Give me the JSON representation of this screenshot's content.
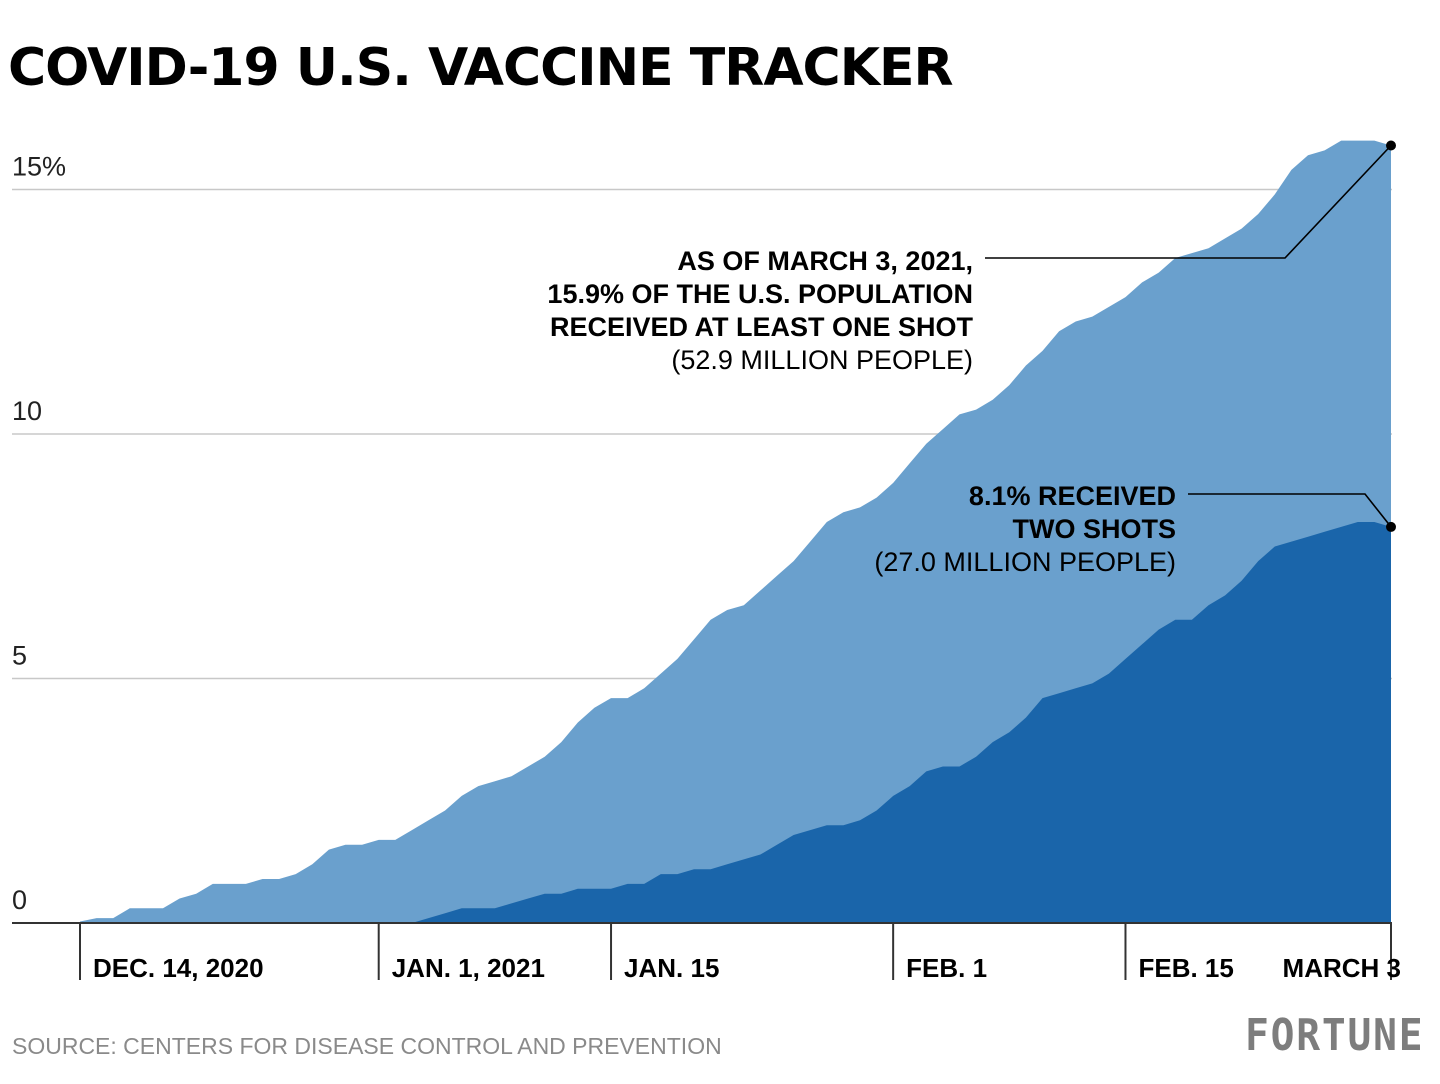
{
  "title": "COVID-19 U.S. VACCINE TRACKER",
  "source": "SOURCE: CENTERS FOR DISEASE CONTROL AND PREVENTION",
  "brand": "FORTUNE",
  "colors": {
    "at_least_one": "#6aa0cd",
    "two_shots": "#1a65aa",
    "grid": "#c8c8c8",
    "axis": "#333333"
  },
  "chart_data": {
    "type": "area",
    "title": "COVID-19 U.S. VACCINE TRACKER",
    "ylabel": "",
    "xlabel": "",
    "ylim": [
      0,
      16
    ],
    "xlim": [
      "2020-12-14",
      "2021-03-03"
    ],
    "y_ticks": [
      {
        "value": 0,
        "label": "0"
      },
      {
        "value": 5,
        "label": "5"
      },
      {
        "value": 10,
        "label": "10"
      },
      {
        "value": 15,
        "label": "15%"
      }
    ],
    "x_ticks": [
      {
        "date": "2020-12-14",
        "label": "DEC. 14, 2020"
      },
      {
        "date": "2021-01-01",
        "label": "JAN. 1, 2021"
      },
      {
        "date": "2021-01-15",
        "label": "JAN. 15"
      },
      {
        "date": "2021-02-01",
        "label": "FEB. 1"
      },
      {
        "date": "2021-02-15",
        "label": "FEB. 15"
      },
      {
        "date": "2021-03-03",
        "label": "MARCH 3"
      }
    ],
    "grid": true,
    "x": [
      "2020-12-14",
      "2020-12-15",
      "2020-12-16",
      "2020-12-17",
      "2020-12-18",
      "2020-12-19",
      "2020-12-20",
      "2020-12-21",
      "2020-12-22",
      "2020-12-23",
      "2020-12-24",
      "2020-12-25",
      "2020-12-26",
      "2020-12-27",
      "2020-12-28",
      "2020-12-29",
      "2020-12-30",
      "2020-12-31",
      "2021-01-01",
      "2021-01-02",
      "2021-01-03",
      "2021-01-04",
      "2021-01-05",
      "2021-01-06",
      "2021-01-07",
      "2021-01-08",
      "2021-01-09",
      "2021-01-10",
      "2021-01-11",
      "2021-01-12",
      "2021-01-13",
      "2021-01-14",
      "2021-01-15",
      "2021-01-16",
      "2021-01-17",
      "2021-01-18",
      "2021-01-19",
      "2021-01-20",
      "2021-01-21",
      "2021-01-22",
      "2021-01-23",
      "2021-01-24",
      "2021-01-25",
      "2021-01-26",
      "2021-01-27",
      "2021-01-28",
      "2021-01-29",
      "2021-01-30",
      "2021-01-31",
      "2021-02-01",
      "2021-02-02",
      "2021-02-03",
      "2021-02-04",
      "2021-02-05",
      "2021-02-06",
      "2021-02-07",
      "2021-02-08",
      "2021-02-09",
      "2021-02-10",
      "2021-02-11",
      "2021-02-12",
      "2021-02-13",
      "2021-02-14",
      "2021-02-15",
      "2021-02-16",
      "2021-02-17",
      "2021-02-18",
      "2021-02-19",
      "2021-02-20",
      "2021-02-21",
      "2021-02-22",
      "2021-02-23",
      "2021-02-24",
      "2021-02-25",
      "2021-02-26",
      "2021-02-27",
      "2021-02-28",
      "2021-03-01",
      "2021-03-02",
      "2021-03-03"
    ],
    "series": [
      {
        "name": "RECEIVED AT LEAST ONE SHOT",
        "values": [
          0.03,
          0.1,
          0.1,
          0.3,
          0.3,
          0.3,
          0.5,
          0.6,
          0.8,
          0.8,
          0.8,
          0.9,
          0.9,
          1.0,
          1.2,
          1.5,
          1.6,
          1.6,
          1.7,
          1.7,
          1.9,
          2.1,
          2.3,
          2.6,
          2.8,
          2.9,
          3.0,
          3.2,
          3.4,
          3.7,
          4.1,
          4.4,
          4.6,
          4.6,
          4.8,
          5.1,
          5.4,
          5.8,
          6.2,
          6.4,
          6.5,
          6.8,
          7.1,
          7.4,
          7.8,
          8.2,
          8.4,
          8.5,
          8.7,
          9.0,
          9.4,
          9.8,
          10.1,
          10.4,
          10.5,
          10.7,
          11.0,
          11.4,
          11.7,
          12.1,
          12.3,
          12.4,
          12.6,
          12.8,
          13.1,
          13.3,
          13.6,
          13.7,
          13.8,
          14.0,
          14.2,
          14.5,
          14.9,
          15.4,
          15.7,
          15.8,
          16.0,
          16.0,
          16.0,
          15.9
        ]
      },
      {
        "name": "RECEIVED TWO SHOTS",
        "values": [
          0,
          0,
          0,
          0,
          0,
          0,
          0,
          0,
          0,
          0,
          0,
          0,
          0,
          0,
          0,
          0,
          0,
          0,
          0,
          0,
          0,
          0.1,
          0.2,
          0.3,
          0.3,
          0.3,
          0.4,
          0.5,
          0.6,
          0.6,
          0.7,
          0.7,
          0.7,
          0.8,
          0.8,
          1.0,
          1.0,
          1.1,
          1.1,
          1.2,
          1.3,
          1.4,
          1.6,
          1.8,
          1.9,
          2.0,
          2.0,
          2.1,
          2.3,
          2.6,
          2.8,
          3.1,
          3.2,
          3.2,
          3.4,
          3.7,
          3.9,
          4.2,
          4.6,
          4.7,
          4.8,
          4.9,
          5.1,
          5.4,
          5.7,
          6.0,
          6.2,
          6.2,
          6.5,
          6.7,
          7.0,
          7.4,
          7.7,
          7.8,
          7.9,
          8.0,
          8.1,
          8.2,
          8.2,
          8.1
        ]
      }
    ],
    "annotations": [
      {
        "target_series": 0,
        "lines_bold": [
          "AS OF MARCH 3, 2021,",
          "15.9% OF THE U.S. POPULATION",
          "RECEIVED AT LEAST ONE SHOT"
        ],
        "line_regular": "(52.9 MILLION PEOPLE)"
      },
      {
        "target_series": 1,
        "lines_bold": [
          "8.1% RECEIVED",
          "TWO SHOTS"
        ],
        "line_regular": "(27.0 MILLION PEOPLE)"
      }
    ]
  }
}
